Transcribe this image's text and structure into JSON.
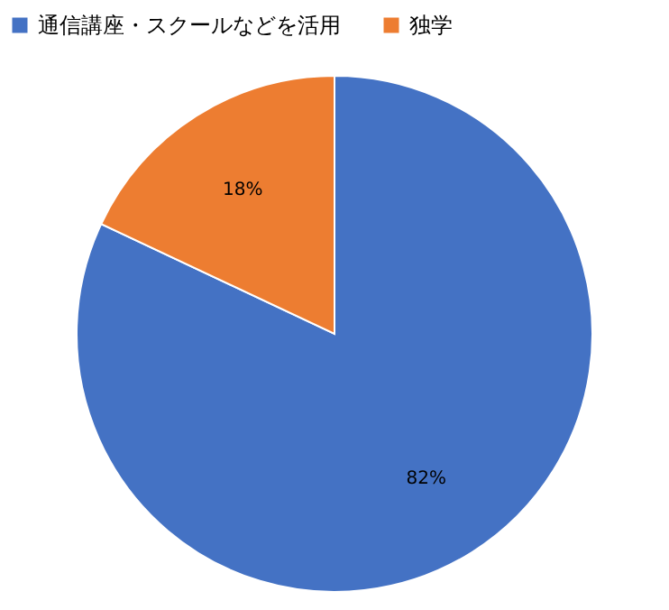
{
  "chart_data": {
    "type": "pie",
    "categories": [
      "通信講座・スクールなどを活用",
      "独学"
    ],
    "values": [
      82,
      18
    ],
    "colors": [
      "#4472c4",
      "#ed7d31"
    ],
    "value_labels": [
      "82%",
      "18%"
    ],
    "legend": "top"
  }
}
